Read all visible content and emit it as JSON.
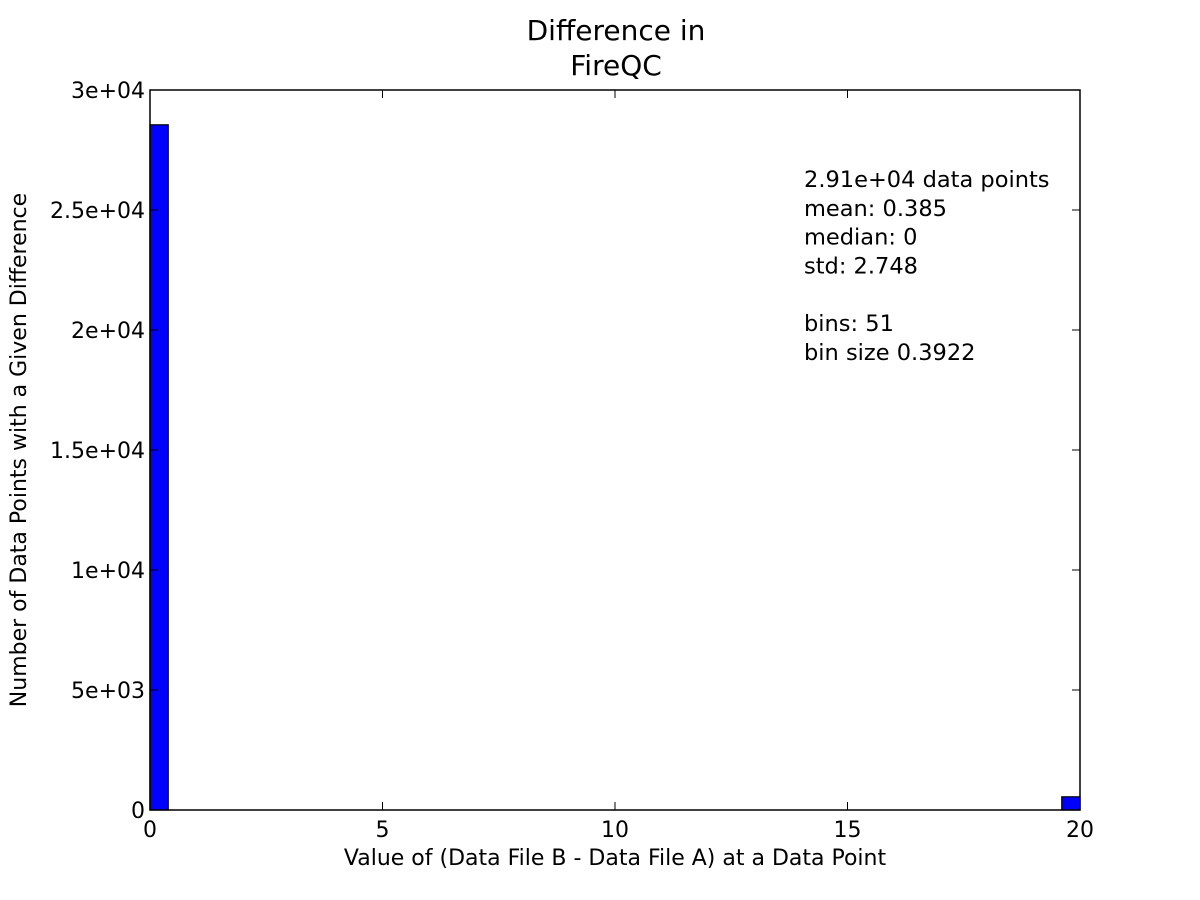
{
  "chart_data": {
    "type": "bar",
    "title_lines": [
      "Difference in",
      "FireQC"
    ],
    "xlabel": "Value of (Data File B - Data File A) at a Data Point",
    "ylabel": "Number of Data Points with a Given Difference",
    "xlim": [
      0,
      20
    ],
    "ylim": [
      0,
      30000
    ],
    "x_ticks": [
      0,
      5,
      10,
      15,
      20
    ],
    "x_tick_labels": [
      "0",
      "5",
      "10",
      "15",
      "20"
    ],
    "y_ticks": [
      0,
      5000,
      10000,
      15000,
      20000,
      25000,
      30000
    ],
    "y_tick_labels": [
      "0",
      "5e+03",
      "1e+04",
      "1.5e+04",
      "2e+04",
      "2.5e+04",
      "3e+04"
    ],
    "bars": [
      {
        "x_start": 0,
        "x_end": 0.3922,
        "value": 28550
      },
      {
        "x_start": 19.6078,
        "x_end": 20,
        "value": 550
      }
    ],
    "bar_color": "#0000ff",
    "grid": false,
    "stats_lines": [
      "2.91e+04 data points",
      "mean: 0.385",
      "median: 0",
      "std: 2.748",
      "",
      "bins: 51",
      "bin size 0.3922"
    ]
  }
}
